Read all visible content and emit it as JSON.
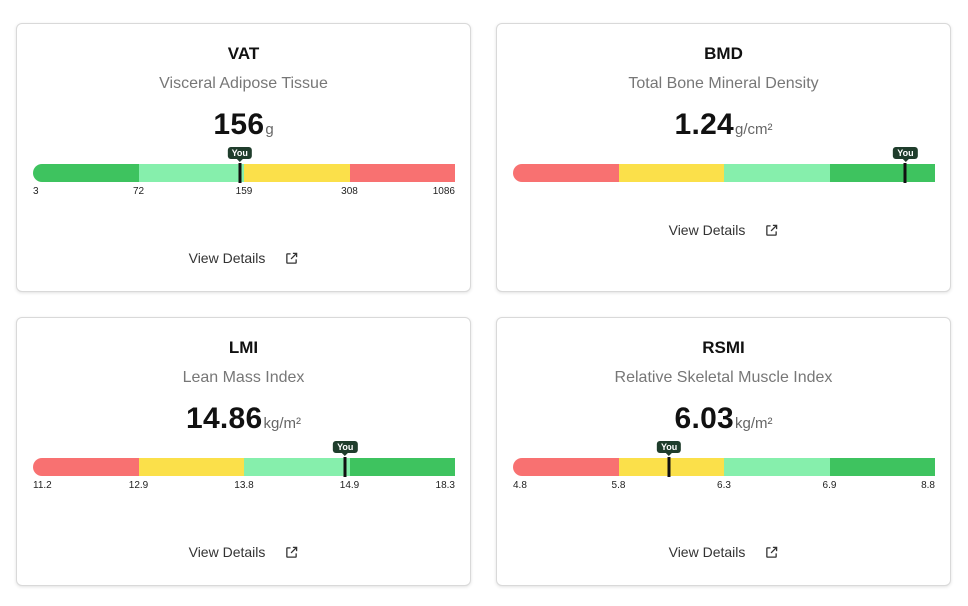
{
  "segment_colors": {
    "red": "#f87171",
    "yellow": "#fbe04a",
    "lightgreen": "#86efac",
    "green": "#3ec35f"
  },
  "cards": [
    {
      "title": "VAT",
      "subtitle": "Visceral Adipose Tissue",
      "value": "156",
      "unit": "g",
      "segments": [
        "green",
        "lightgreen",
        "yellow",
        "red"
      ],
      "ticks": [
        "3",
        "72",
        "159",
        "308",
        "1086"
      ],
      "marker_fraction": 0.49,
      "you_label": "You",
      "details_label": "View Details"
    },
    {
      "title": "BMD",
      "subtitle": "Total Bone Mineral Density",
      "value": "1.24",
      "unit": "g/cm²",
      "segments": [
        "red",
        "yellow",
        "lightgreen",
        "green"
      ],
      "ticks": [],
      "marker_fraction": 0.93,
      "you_label": "You",
      "details_label": "View Details"
    },
    {
      "title": "LMI",
      "subtitle": "Lean Mass Index",
      "value": "14.86",
      "unit": "kg/m²",
      "segments": [
        "red",
        "yellow",
        "lightgreen",
        "green"
      ],
      "ticks": [
        "11.2",
        "12.9",
        "13.8",
        "14.9",
        "18.3"
      ],
      "marker_fraction": 0.74,
      "you_label": "You",
      "details_label": "View Details"
    },
    {
      "title": "RSMI",
      "subtitle": "Relative Skeletal Muscle Index",
      "value": "6.03",
      "unit": "kg/m²",
      "segments": [
        "red",
        "yellow",
        "lightgreen",
        "green"
      ],
      "ticks": [
        "4.8",
        "5.8",
        "6.3",
        "6.9",
        "8.8"
      ],
      "marker_fraction": 0.37,
      "you_label": "You",
      "details_label": "View Details"
    }
  ]
}
